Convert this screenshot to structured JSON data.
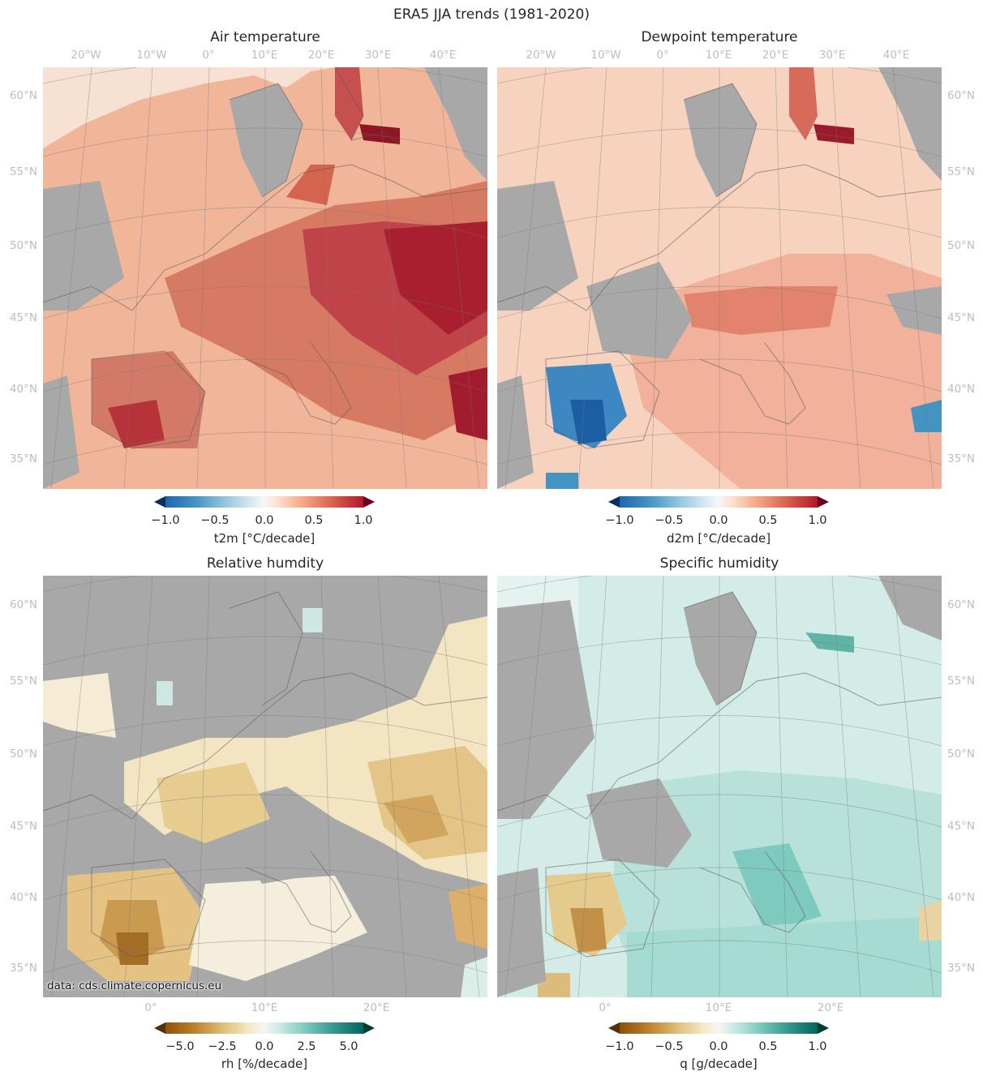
{
  "figure": {
    "suptitle": "ERA5 JJA trends (1981-2020)",
    "credit": "data: cds.climate.copernicus.eu",
    "masked_color": "#a8a8a8"
  },
  "chart_data": [
    {
      "type": "heatmap",
      "title": "Air temperature",
      "variable": "t2m",
      "colormap": "RdBu_r",
      "colorbar": {
        "label": "t2m [°C/decade]",
        "ticks": [
          "−1.0",
          "−0.5",
          "0.0",
          "0.5",
          "1.0"
        ],
        "range": [
          -1.0,
          1.0
        ],
        "extend": "both",
        "colors": [
          "#053061",
          "#2166ac",
          "#4393c3",
          "#92c5de",
          "#d1e5f0",
          "#f7f7f7",
          "#fddbc7",
          "#f4a582",
          "#d6604d",
          "#b2182b",
          "#67001f"
        ]
      },
      "lon_ticks_top": [
        "20°W",
        "10°W",
        "0°",
        "10°E",
        "20°E",
        "30°E",
        "40°E"
      ],
      "lat_ticks_left": [
        "60°N",
        "55°N",
        "50°N",
        "45°N",
        "40°N",
        "35°N"
      ],
      "lat_ticks_right": [],
      "lon_ticks_bottom": [],
      "typical_trend": 0.5,
      "regional_maxima": [
        "Eastern Europe",
        "Iberia",
        "Balkans",
        "Gulf of Finland"
      ]
    },
    {
      "type": "heatmap",
      "title": "Dewpoint temperature",
      "variable": "d2m",
      "colormap": "RdBu_r",
      "colorbar": {
        "label": "d2m [°C/decade]",
        "ticks": [
          "−1.0",
          "−0.5",
          "0.0",
          "0.5",
          "1.0"
        ],
        "range": [
          -1.0,
          1.0
        ],
        "extend": "both",
        "colors": [
          "#053061",
          "#2166ac",
          "#4393c3",
          "#92c5de",
          "#d1e5f0",
          "#f7f7f7",
          "#fddbc7",
          "#f4a582",
          "#d6604d",
          "#b2182b",
          "#67001f"
        ]
      },
      "lon_ticks_top": [
        "20°W",
        "10°W",
        "0°",
        "10°E",
        "20°E",
        "30°E",
        "40°E"
      ],
      "lat_ticks_left": [],
      "lat_ticks_right": [
        "60°N",
        "55°N",
        "50°N",
        "45°N",
        "40°N",
        "35°N"
      ],
      "lon_ticks_bottom": [],
      "typical_trend": 0.3,
      "regional_minima": [
        "Central Iberia",
        "Western Turkey"
      ]
    },
    {
      "type": "heatmap",
      "title": "Relative humdity",
      "variable": "rh",
      "colormap": "BrBG",
      "colorbar": {
        "label": "rh [%/decade]",
        "ticks": [
          "−5.0",
          "−2.5",
          "0.0",
          "2.5",
          "5.0"
        ],
        "range": [
          -6.25,
          6.25
        ],
        "extend": "both",
        "colors": [
          "#543005",
          "#8c510a",
          "#bf812d",
          "#dfc27d",
          "#f6e8c3",
          "#f5f5f5",
          "#c7eae5",
          "#80cdc1",
          "#35978f",
          "#01665e",
          "#003c30"
        ]
      },
      "lon_ticks_top": [],
      "lat_ticks_left": [
        "60°N",
        "55°N",
        "50°N",
        "45°N",
        "40°N",
        "35°N"
      ],
      "lat_ticks_right": [],
      "lon_ticks_bottom": [
        "0°",
        "10°E",
        "20°E"
      ],
      "typical_trend": -1.0,
      "regional_minima": [
        "Iberia",
        "France",
        "Eastern Europe",
        "Western Turkey"
      ]
    },
    {
      "type": "heatmap",
      "title": "Specific humidity",
      "variable": "q",
      "colormap": "BrBG",
      "colorbar": {
        "label": "q [g/decade]",
        "ticks": [
          "−1.0",
          "−0.5",
          "0.0",
          "0.5",
          "1.0"
        ],
        "range": [
          -1.0,
          1.0
        ],
        "extend": "both",
        "colors": [
          "#543005",
          "#8c510a",
          "#bf812d",
          "#dfc27d",
          "#f6e8c3",
          "#f5f5f5",
          "#c7eae5",
          "#80cdc1",
          "#35978f",
          "#01665e",
          "#003c30"
        ]
      },
      "lon_ticks_top": [],
      "lat_ticks_left": [],
      "lat_ticks_right": [
        "60°N",
        "55°N",
        "50°N",
        "45°N",
        "40°N",
        "35°N"
      ],
      "lon_ticks_bottom": [
        "0°",
        "10°E",
        "20°E"
      ],
      "typical_trend": 0.3,
      "regional_minima": [
        "Central Iberia",
        "Western Turkey"
      ]
    }
  ]
}
